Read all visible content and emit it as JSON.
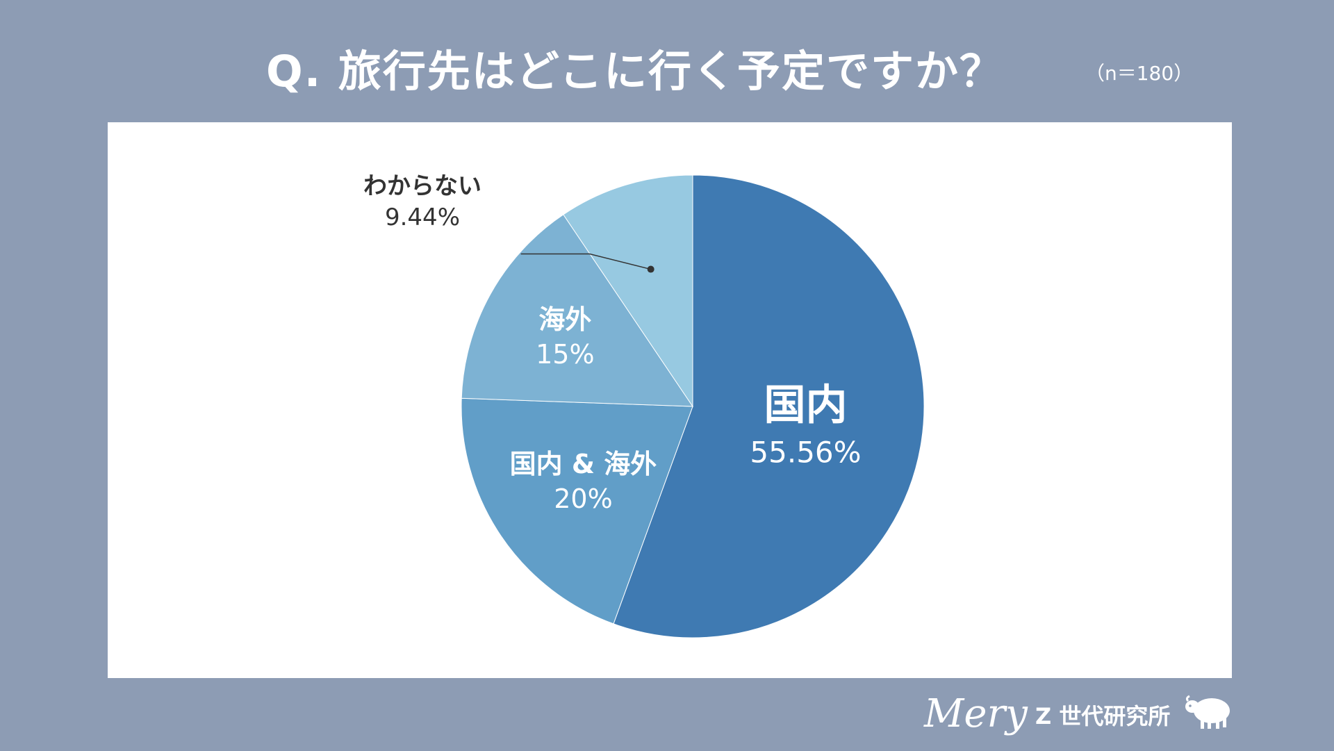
{
  "header": {
    "title": "Q. 旅行先はどこに行く予定ですか？",
    "sample_size": "（n＝180）"
  },
  "chart_data": {
    "type": "pie",
    "slices": [
      {
        "label": "国内",
        "value": 55.56,
        "value_label": "55.56%",
        "color": "#3f7ab2"
      },
      {
        "label": "国内 & 海外",
        "value": 20,
        "value_label": "20%",
        "color": "#619ec8"
      },
      {
        "label": "海外",
        "value": 15,
        "value_label": "15%",
        "color": "#7db2d3"
      },
      {
        "label": "わからない",
        "value": 9.44,
        "value_label": "9.44%",
        "color": "#97c9e1"
      }
    ]
  },
  "footer": {
    "logo": "Mery",
    "brand": "Z 世代研究所"
  }
}
